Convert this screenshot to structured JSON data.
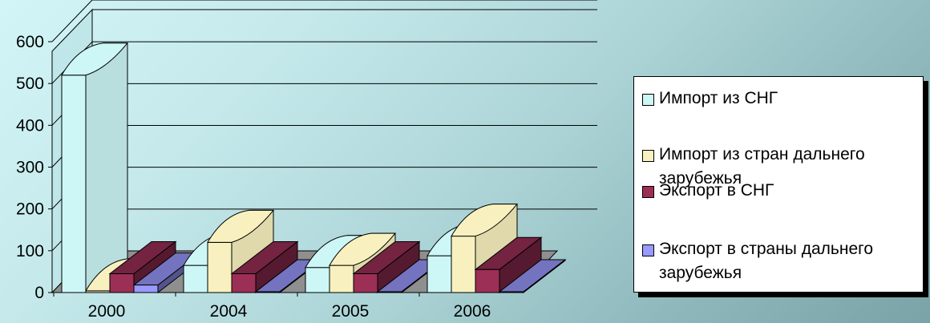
{
  "chart_data": {
    "type": "bar",
    "categories": [
      "2000",
      "2004",
      "2005",
      "2006"
    ],
    "series": [
      {
        "name": "Импорт из СНГ",
        "values": [
          520,
          65,
          60,
          88
        ],
        "color": "#cdf7f7"
      },
      {
        "name": "Импорт из стран дальнего зарубежья",
        "values": [
          4,
          120,
          65,
          135
        ],
        "color": "#f8f1bf"
      },
      {
        "name": "Экспорт в СНГ",
        "values": [
          45,
          45,
          45,
          55
        ],
        "color": "#9b2f55"
      },
      {
        "name": "Экспорт в страны дальнего зарубежья",
        "values": [
          18,
          2,
          2,
          2
        ],
        "color": "#9999ff"
      }
    ],
    "yticks": [
      "0",
      "100",
      "200",
      "300",
      "400",
      "500",
      "600"
    ],
    "ylim": [
      0,
      650
    ],
    "legend": "right",
    "grid": true
  },
  "legend": {
    "items": [
      {
        "line1": "Импорт из СНГ",
        "line2": ""
      },
      {
        "line1": "Импорт из стран дальнего",
        "line2": "зарубежья"
      },
      {
        "line1": "Экспорт в СНГ",
        "line2": ""
      },
      {
        "line1": "Экспорт в страны дальнего",
        "line2": "зарубежья"
      }
    ]
  }
}
